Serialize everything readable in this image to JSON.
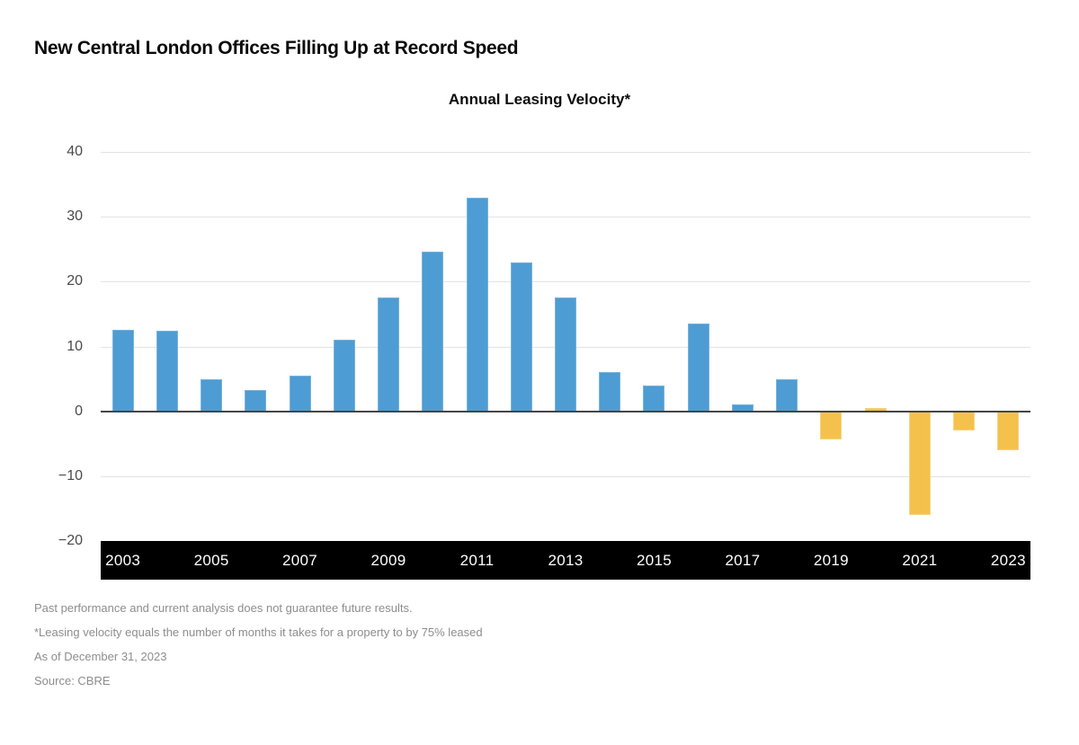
{
  "header": {
    "title": "New Central London Offices Filling Up at Record Speed"
  },
  "chart_data": {
    "type": "bar",
    "title": "Annual Leasing Velocity*",
    "categories": [
      2003,
      2004,
      2005,
      2006,
      2007,
      2008,
      2009,
      2010,
      2011,
      2012,
      2013,
      2014,
      2015,
      2016,
      2017,
      2018,
      2019,
      2020,
      2021,
      2022,
      2023
    ],
    "values": [
      12.6,
      12.4,
      5.0,
      3.3,
      5.5,
      11.0,
      17.5,
      24.6,
      33.0,
      23.0,
      17.5,
      6.0,
      4.0,
      13.6,
      1.0,
      5.0,
      -4.4,
      0.5,
      -16.0,
      -3.0,
      -6.0
    ],
    "bar_colors": [
      "blue",
      "blue",
      "blue",
      "blue",
      "blue",
      "blue",
      "blue",
      "blue",
      "blue",
      "blue",
      "blue",
      "blue",
      "blue",
      "blue",
      "blue",
      "blue",
      "yellow",
      "yellow",
      "yellow",
      "yellow",
      "yellow"
    ],
    "palette": {
      "blue": "#4D9CD3",
      "yellow": "#F4C24C"
    },
    "ylim": [
      -20,
      40
    ],
    "ytick_labels": [
      "40",
      "30",
      "20",
      "10",
      "0",
      "−10",
      "−20"
    ],
    "ytick_values": [
      40,
      30,
      20,
      10,
      0,
      -10,
      -20
    ],
    "xtick_labels": [
      "2003",
      "2005",
      "2007",
      "2009",
      "2011",
      "2013",
      "2015",
      "2017",
      "2019",
      "2021",
      "2023"
    ],
    "xtick_step": 2,
    "grid": true,
    "legend": "none",
    "x_axis_style": "black-band-white-text"
  },
  "footnotes": [
    "Past performance and current analysis does not guarantee future results.",
    "*Leasing velocity equals the number of months it takes for a property to by 75% leased",
    "As of December 31, 2023",
    "Source: CBRE"
  ]
}
